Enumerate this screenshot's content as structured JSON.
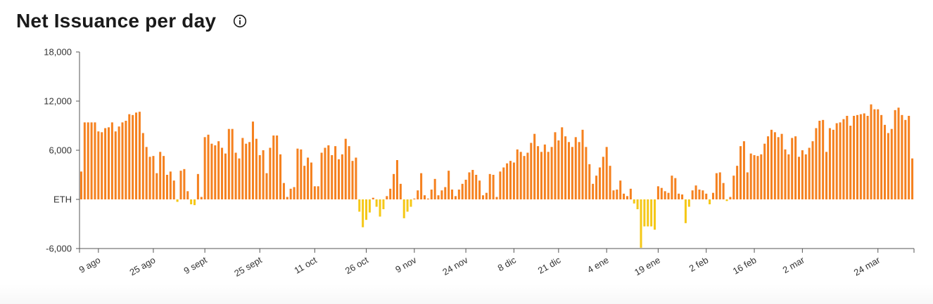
{
  "title": "Net Issuance per day",
  "colors": {
    "positive": "#f5811f",
    "negative": "#f5c817",
    "axis": "#555555"
  },
  "chart_data": {
    "type": "bar",
    "title": "Net Issuance per day",
    "ylim": [
      -6000,
      18000
    ],
    "yticks": [
      {
        "value": 18000,
        "label": "18,000"
      },
      {
        "value": 12000,
        "label": "12,000"
      },
      {
        "value": 6000,
        "label": "6,000"
      },
      {
        "value": 0,
        "label": "ETH"
      },
      {
        "value": -6000,
        "label": "-6,000"
      }
    ],
    "xticks": [
      {
        "index": 5,
        "label": "9 ago"
      },
      {
        "index": 21,
        "label": "25 ago"
      },
      {
        "index": 36,
        "label": "9 sept"
      },
      {
        "index": 52,
        "label": "25 sept"
      },
      {
        "index": 68,
        "label": "11 oct"
      },
      {
        "index": 83,
        "label": "26 oct"
      },
      {
        "index": 97,
        "label": "9 nov"
      },
      {
        "index": 112,
        "label": "24 nov"
      },
      {
        "index": 126,
        "label": "8 dic"
      },
      {
        "index": 139,
        "label": "21 dic"
      },
      {
        "index": 153,
        "label": "4 ene"
      },
      {
        "index": 168,
        "label": "19 ene"
      },
      {
        "index": 182,
        "label": "2 feb"
      },
      {
        "index": 196,
        "label": "16 feb"
      },
      {
        "index": 210,
        "label": "2 mar"
      },
      {
        "index": 232,
        "label": "24 mar"
      }
    ],
    "grid": false,
    "values": [
      3400,
      9400,
      9400,
      9400,
      9400,
      8300,
      8200,
      8700,
      8800,
      9400,
      8300,
      8900,
      9400,
      9600,
      10400,
      10300,
      10600,
      10700,
      8100,
      6400,
      5200,
      5300,
      3200,
      5800,
      5300,
      3000,
      3400,
      2300,
      -300,
      3500,
      3700,
      1000,
      -600,
      -700,
      3100,
      300,
      7600,
      7900,
      6800,
      6600,
      7100,
      6300,
      5600,
      8600,
      8600,
      5700,
      5000,
      7500,
      6800,
      7000,
      9500,
      7400,
      5400,
      6000,
      3200,
      6300,
      7800,
      7800,
      5500,
      2000,
      300,
      1300,
      1500,
      6200,
      6100,
      4100,
      5100,
      4500,
      1600,
      1600,
      5700,
      6300,
      6600,
      5400,
      6500,
      4900,
      5500,
      7400,
      6500,
      4700,
      5100,
      -1500,
      -3400,
      -2500,
      -1600,
      200,
      -900,
      -2100,
      -1200,
      400,
      1300,
      3100,
      4800,
      1900,
      -2300,
      -1500,
      -900,
      100,
      1100,
      3200,
      500,
      100,
      1200,
      2500,
      500,
      1100,
      1500,
      3500,
      1200,
      400,
      1200,
      1900,
      2400,
      3300,
      3600,
      3000,
      2300,
      500,
      800,
      3100,
      3000,
      300,
      3400,
      3900,
      4400,
      4700,
      4500,
      6100,
      5800,
      5300,
      5700,
      6900,
      8000,
      6500,
      5800,
      6700,
      5800,
      6400,
      8200,
      7200,
      8800,
      7700,
      7000,
      6400,
      7600,
      7000,
      8500,
      6400,
      4300,
      1900,
      2900,
      3900,
      5200,
      6400,
      4100,
      1100,
      1200,
      2300,
      700,
      400,
      1300,
      -500,
      -1200,
      -5900,
      -3300,
      -3300,
      -3300,
      -3700,
      1600,
      1400,
      1000,
      800,
      2900,
      2600,
      700,
      600,
      -2900,
      -900,
      1100,
      1700,
      1200,
      1100,
      700,
      -600,
      800,
      3200,
      3300,
      2000,
      -200,
      300,
      2900,
      4100,
      6500,
      7100,
      3300,
      5600,
      5400,
      5300,
      5500,
      6800,
      7700,
      8500,
      8200,
      7600,
      8000,
      6100,
      5500,
      7500,
      7700,
      5200,
      6000,
      5500,
      6300,
      7100,
      8700,
      9600,
      9700,
      5800,
      8700,
      8500,
      9300,
      9400,
      9800,
      10200,
      9000,
      10200,
      10300,
      10400,
      10500,
      10200,
      11600,
      11000,
      11000,
      10300,
      9100,
      8100,
      8600,
      10900,
      11200,
      10300,
      9700,
      10200,
      5000
    ]
  }
}
